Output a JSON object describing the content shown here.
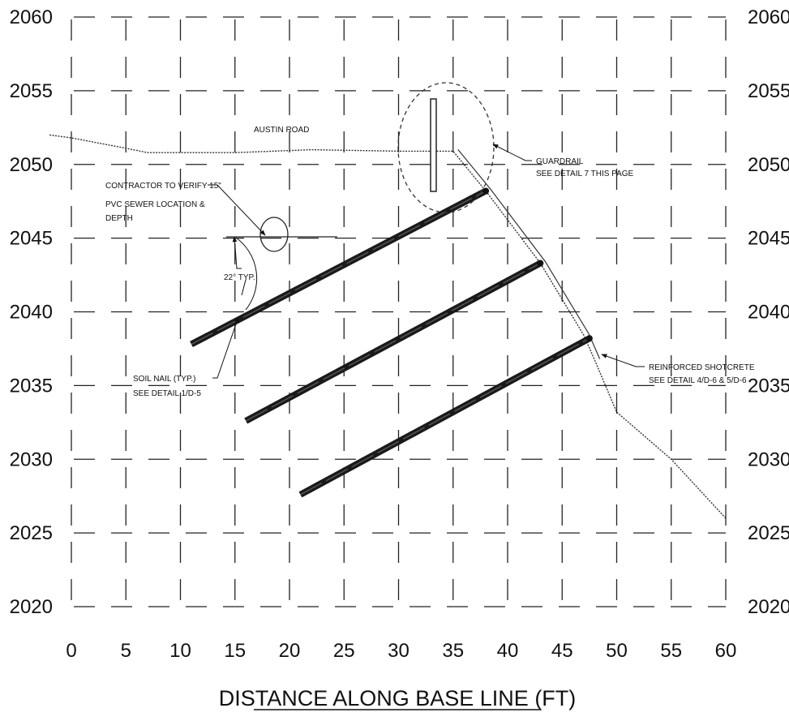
{
  "drawing": {
    "x_axis": {
      "label": "DISTANCE ALONG BASE LINE (FT)",
      "range": [
        0,
        60
      ],
      "ticks": [
        "0",
        "5",
        "10",
        "15",
        "20",
        "25",
        "30",
        "35",
        "40",
        "45",
        "50",
        "55",
        "60"
      ]
    },
    "y_axis": {
      "range": [
        2020,
        2060
      ],
      "ticks": [
        "2060",
        "2055",
        "2050",
        "2045",
        "2040",
        "2035",
        "2030",
        "2025",
        "2020"
      ]
    },
    "grid": "dashed",
    "ground_profile": [
      [
        -2,
        2052
      ],
      [
        0,
        2051.8
      ],
      [
        5,
        2051.1
      ],
      [
        7,
        2050.8
      ],
      [
        15,
        2050.8
      ],
      [
        22,
        2051
      ],
      [
        30,
        2050.9
      ],
      [
        34,
        2050.9
      ],
      [
        35,
        2050.9
      ],
      [
        38,
        2048.2
      ],
      [
        43,
        2043.3
      ],
      [
        47,
        2038.4
      ],
      [
        48,
        2036.7
      ],
      [
        50,
        2033.2
      ],
      [
        55,
        2030
      ],
      [
        60,
        2026
      ]
    ],
    "soil_nails": [
      {
        "from": [
          11,
          2037.8
        ],
        "to": [
          38,
          2048.2
        ]
      },
      {
        "from": [
          16,
          2032.6
        ],
        "to": [
          43,
          2043.3
        ]
      },
      {
        "from": [
          21,
          2027.6
        ],
        "to": [
          47.5,
          2038.2
        ]
      }
    ],
    "callouts": {
      "road": "AUSTIN ROAD",
      "guardrail": [
        "GUARDRAIL",
        "SEE DETAIL 7 THIS PAGE"
      ],
      "sewer": [
        "CONTRACTOR TO VERIFY 15\"",
        "PVC SEWER LOCATION &",
        "DEPTH"
      ],
      "angle": "22° TYP.",
      "soil_nail": [
        "SOIL NAIL (TYP.)",
        "SEE DETAIL 1/D-5"
      ],
      "shotcrete": [
        "REINFORCED SHOTCRETE",
        "SEE DETAIL 4/D-6 & 5/D-6"
      ]
    }
  }
}
